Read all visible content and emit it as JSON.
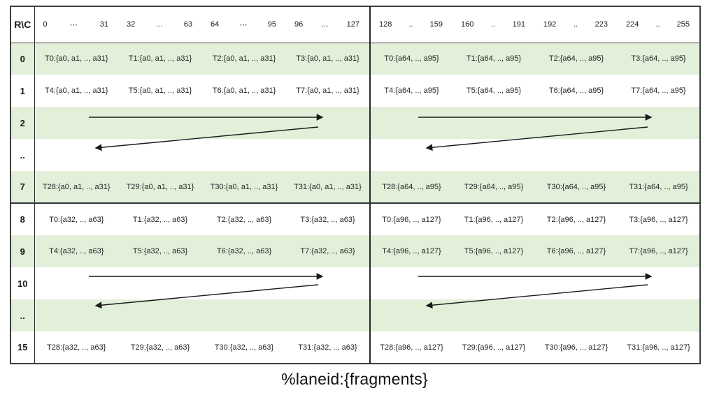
{
  "caption": "%laneid:{fragments}",
  "colors": {
    "band_green": "#e2efd9",
    "border_dark": "#3f3f3f",
    "arrow_black": "#1a1a1a",
    "text": "#262626"
  },
  "table": {
    "corner_label": "R\\C",
    "col_headers": [
      {
        "start": "0",
        "dots": "⋯",
        "end": "31"
      },
      {
        "start": "32",
        "dots": "…",
        "end": "63"
      },
      {
        "start": "64",
        "dots": "⋯",
        "end": "95"
      },
      {
        "start": "96",
        "dots": "…",
        "end": "127"
      },
      {
        "start": "128",
        "dots": "..",
        "end": "159"
      },
      {
        "start": "160",
        "dots": "..",
        "end": "191"
      },
      {
        "start": "192",
        "dots": "..",
        "end": "223"
      },
      {
        "start": "224",
        "dots": "..",
        "end": "255"
      }
    ],
    "rows": [
      {
        "label": "0",
        "shaded": true,
        "arrow": null,
        "cells": [
          "T0:{a0, a1, .., a31}",
          "T1:{a0, a1, .., a31}",
          "T2:{a0, a1, .., a31}",
          "T3:{a0, a1, .., a31}",
          "T0:{a64, .., a95}",
          "T1:{a64, .., a95}",
          "T2:{a64, .., a95}",
          "T3:{a64, .., a95}"
        ]
      },
      {
        "label": "1",
        "shaded": false,
        "arrow": null,
        "cells": [
          "T4:{a0, a1, .., a31}",
          "T5:{a0, a1, .., a31}",
          "T6:{a0, a1, .., a31}",
          "T7:{a0, a1, .., a31}",
          "T4:{a64, .., a95}",
          "T5:{a64, .., a95}",
          "T6:{a64, .., a95}",
          "T7:{a64, .., a95}"
        ]
      },
      {
        "label": "2",
        "shaded": true,
        "arrow": "right",
        "cells": null
      },
      {
        "label": "..",
        "shaded": false,
        "arrow": "left",
        "cells": null
      },
      {
        "label": "7",
        "shaded": true,
        "arrow": null,
        "divider_below": true,
        "cells": [
          "T28:{a0, a1, .., a31}",
          "T29:{a0, a1, .., a31}",
          "T30:{a0, a1, .., a31}",
          "T31:{a0, a1, .., a31}",
          "T28:{a64, .., a95}",
          "T29:{a64, .., a95}",
          "T30:{a64, .., a95}",
          "T31:{a64, .., a95}"
        ]
      },
      {
        "label": "8",
        "shaded": false,
        "arrow": null,
        "cells": [
          "T0:{a32, .., a63}",
          "T1:{a32, .., a63}",
          "T2:{a32, .., a63}",
          "T3:{a32, .., a63}",
          "T0:{a96, .., a127}",
          "T1:{a96, .., a127}",
          "T2:{a96, .., a127}",
          "T3:{a96, .., a127}"
        ]
      },
      {
        "label": "9",
        "shaded": true,
        "arrow": null,
        "cells": [
          "T4:{a32, .., a63}",
          "T5:{a32, .., a63}",
          "T6:{a32, .., a63}",
          "T7:{a32, .., a63}",
          "T4:{a96, .., a127}",
          "T5:{a96, .., a127}",
          "T6:{a96, .., a127}",
          "T7:{a96, .., a127}"
        ]
      },
      {
        "label": "10",
        "shaded": false,
        "arrow": "right",
        "cells": null
      },
      {
        "label": "..",
        "shaded": true,
        "arrow": "left",
        "cells": null
      },
      {
        "label": "15",
        "shaded": false,
        "arrow": null,
        "cells": [
          "T28:{a32, .., a63}",
          "T29:{a32, .., a63}",
          "T30:{a32, .., a63}",
          "T31:{a32, .., a63}",
          "T28:{a96, .., a127}",
          "T29:{a96, .., a127}",
          "T30:{a96, .., a127}",
          "T31:{a96, .., a127}"
        ]
      }
    ]
  }
}
